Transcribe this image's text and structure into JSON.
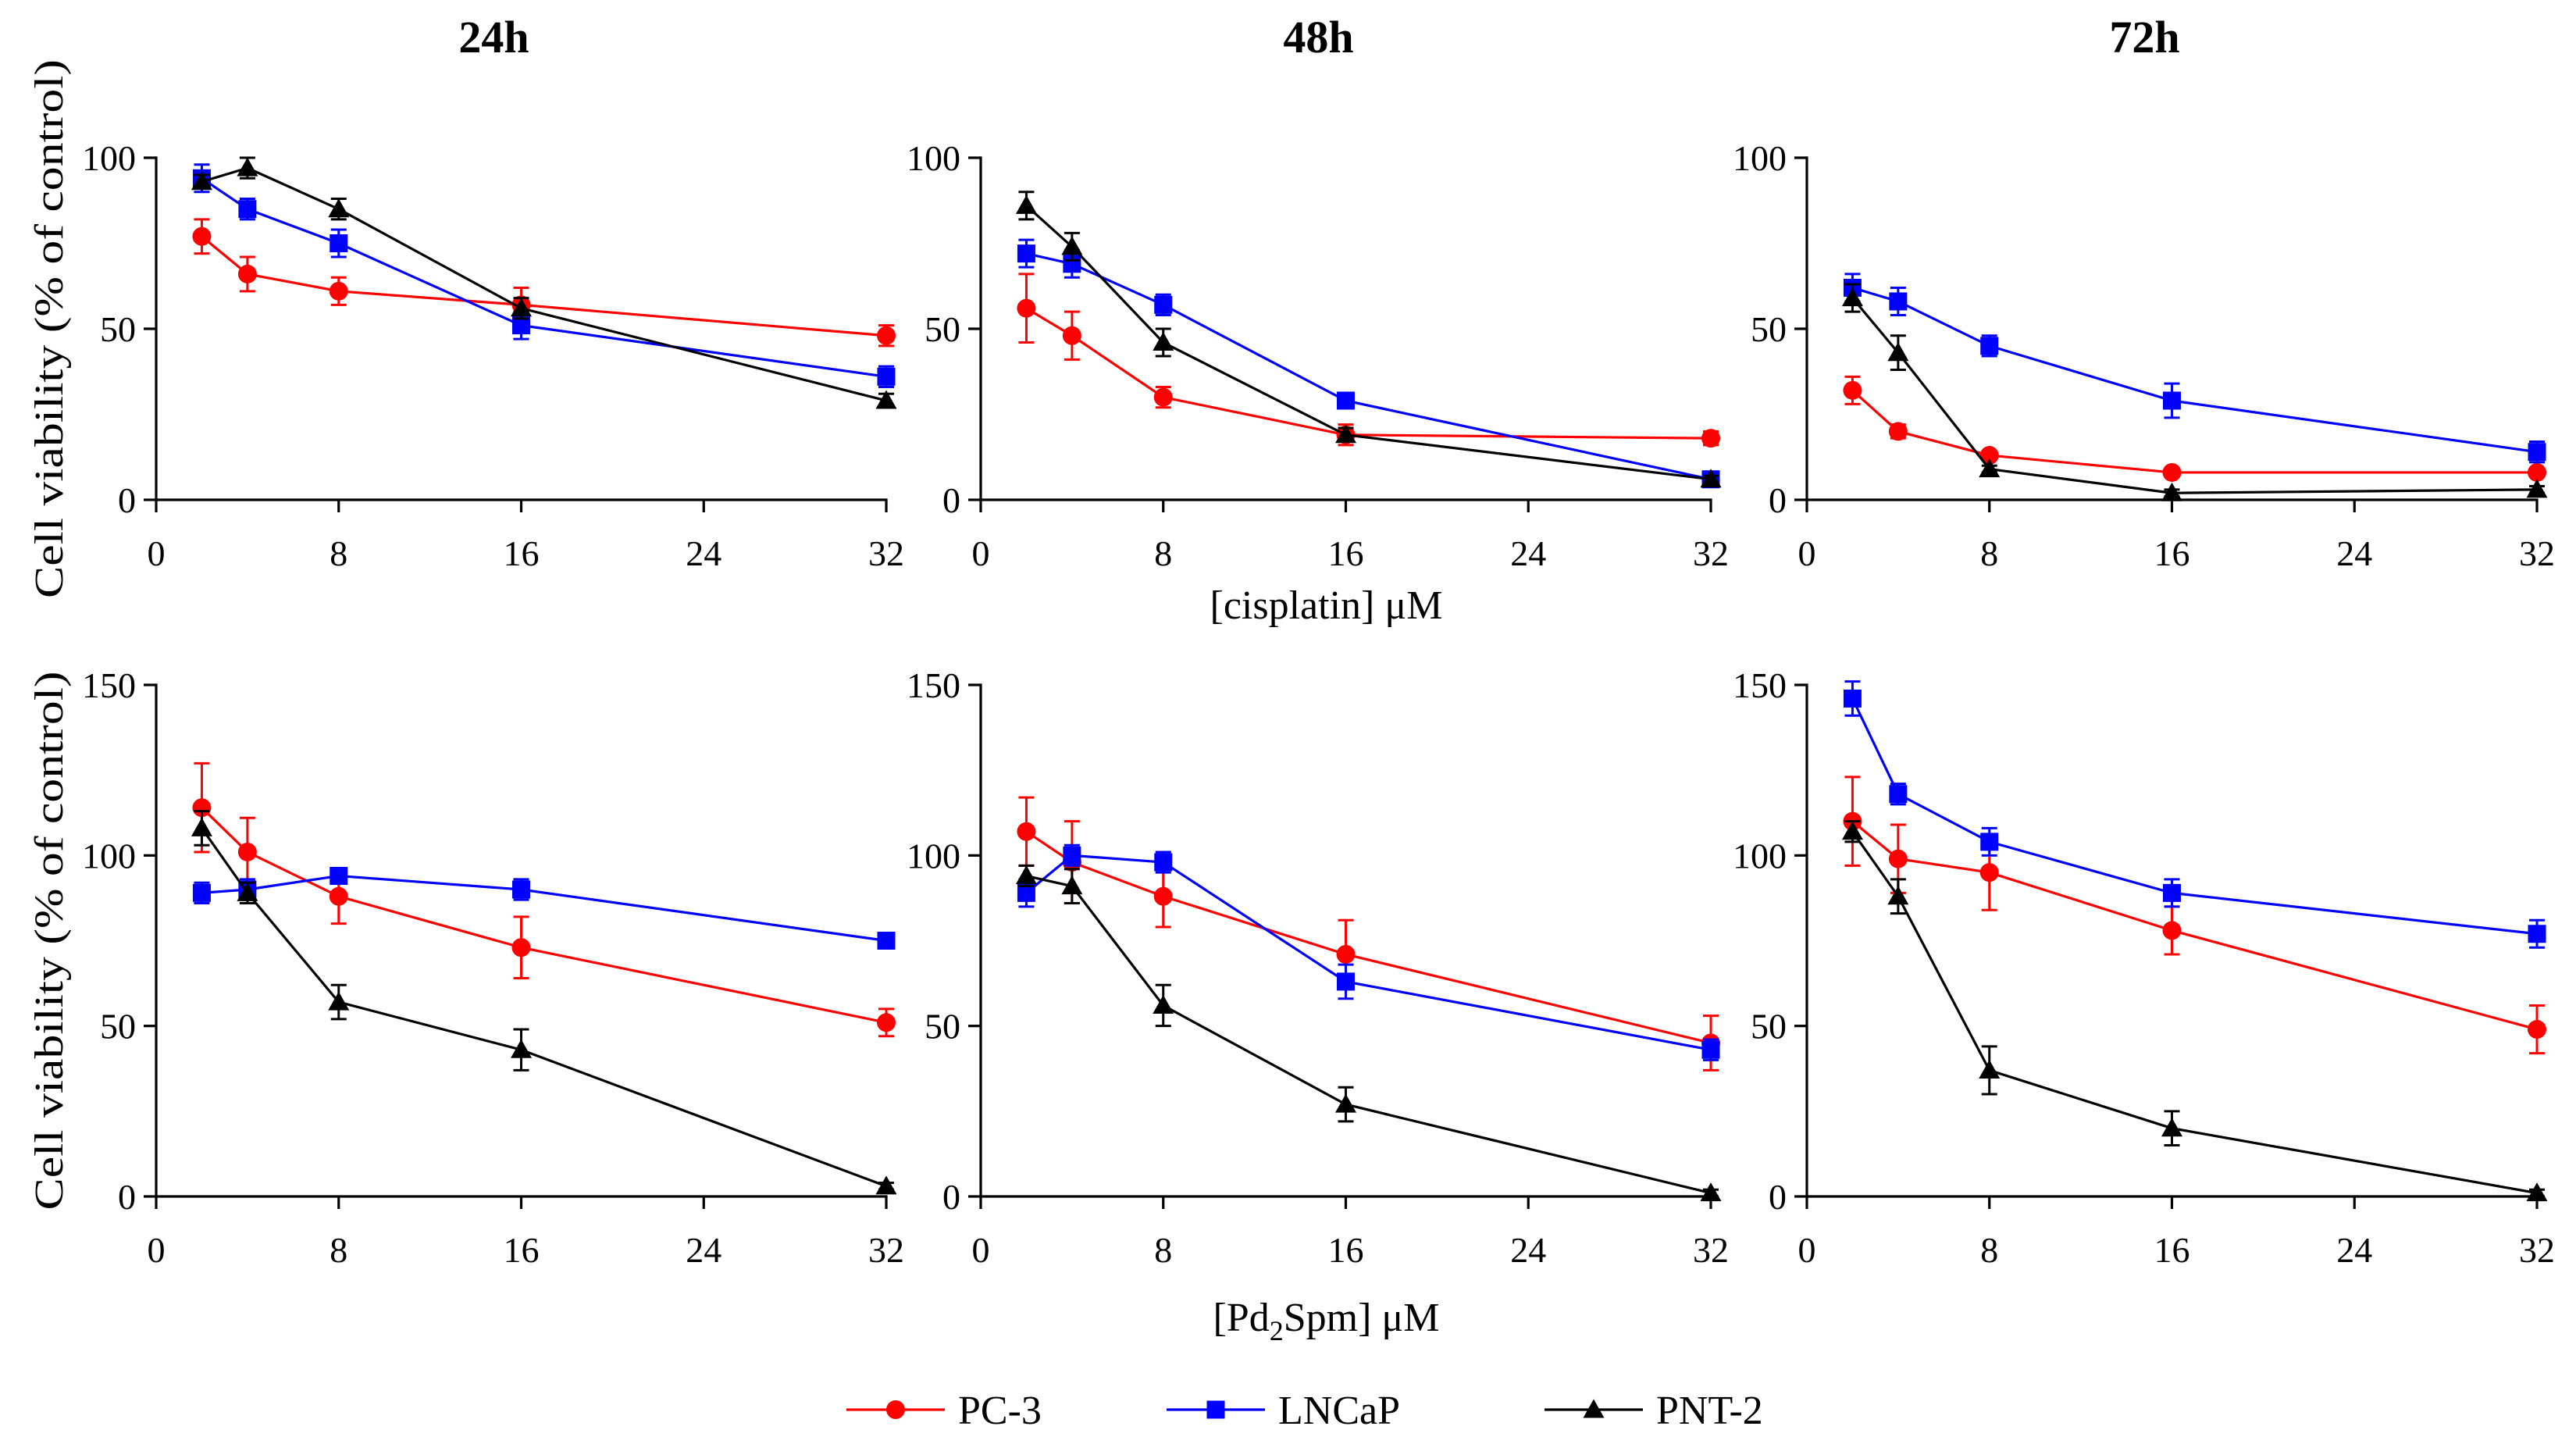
{
  "figure": {
    "legend": [
      {
        "name": "PC-3",
        "color": "#ff0000",
        "marker": "circle"
      },
      {
        "name": "LNCaP",
        "color": "#0000ff",
        "marker": "square"
      },
      {
        "name": "PNT-2",
        "color": "#000000",
        "marker": "triangle"
      }
    ]
  },
  "chart_data": [
    {
      "type": "line",
      "title": "24h",
      "ylabel": "Cell viability (% of control)",
      "xlim": [
        0,
        32
      ],
      "ylim": [
        0,
        100
      ],
      "xticks": [
        0,
        8,
        16,
        24,
        32
      ],
      "yticks": [
        0,
        50,
        100
      ],
      "series": [
        {
          "name": "PC-3",
          "x": [
            2,
            4,
            8,
            16,
            32
          ],
          "values": [
            77,
            66,
            61,
            57,
            48
          ],
          "errors": [
            5,
            5,
            4,
            5,
            3
          ]
        },
        {
          "name": "LNCaP",
          "x": [
            2,
            4,
            8,
            16,
            32
          ],
          "values": [
            94,
            85,
            75,
            51,
            36
          ],
          "errors": [
            4,
            3,
            4,
            4,
            3
          ]
        },
        {
          "name": "PNT-2",
          "x": [
            2,
            4,
            8,
            16,
            32
          ],
          "values": [
            93,
            97,
            85,
            56,
            29
          ],
          "errors": [
            2,
            3,
            3,
            3,
            2
          ]
        }
      ]
    },
    {
      "type": "line",
      "title": "48h",
      "xlabel": [
        {
          "text": "[cisplatin] μM"
        }
      ],
      "xlim": [
        0,
        32
      ],
      "ylim": [
        0,
        100
      ],
      "xticks": [
        0,
        8,
        16,
        24,
        32
      ],
      "yticks": [
        0,
        50,
        100
      ],
      "series": [
        {
          "name": "PC-3",
          "x": [
            2,
            4,
            8,
            16,
            32
          ],
          "values": [
            56,
            48,
            30,
            19,
            18
          ],
          "errors": [
            10,
            7,
            3,
            3,
            2
          ]
        },
        {
          "name": "LNCaP",
          "x": [
            2,
            4,
            8,
            16,
            32
          ],
          "values": [
            72,
            69,
            57,
            29,
            6
          ],
          "errors": [
            4,
            4,
            3,
            2,
            1
          ]
        },
        {
          "name": "PNT-2",
          "x": [
            2,
            4,
            8,
            16,
            32
          ],
          "values": [
            86,
            74,
            46,
            19,
            6
          ],
          "errors": [
            4,
            4,
            4,
            2,
            1
          ]
        }
      ]
    },
    {
      "type": "line",
      "title": "72h",
      "xlim": [
        0,
        32
      ],
      "ylim": [
        0,
        100
      ],
      "xticks": [
        0,
        8,
        16,
        24,
        32
      ],
      "yticks": [
        0,
        50,
        100
      ],
      "series": [
        {
          "name": "PC-3",
          "x": [
            2,
            4,
            8,
            16,
            32
          ],
          "values": [
            32,
            20,
            13,
            8,
            8
          ],
          "errors": [
            4,
            2,
            1,
            1,
            1
          ]
        },
        {
          "name": "LNCaP",
          "x": [
            2,
            4,
            8,
            16,
            32
          ],
          "values": [
            62,
            58,
            45,
            29,
            14
          ],
          "errors": [
            4,
            4,
            3,
            5,
            3
          ]
        },
        {
          "name": "PNT-2",
          "x": [
            2,
            4,
            8,
            16,
            32
          ],
          "values": [
            59,
            43,
            9,
            2,
            3
          ],
          "errors": [
            4,
            5,
            1,
            1,
            1
          ]
        }
      ]
    },
    {
      "type": "line",
      "ylabel": "Cell viability (% of control)",
      "xlim": [
        0,
        32
      ],
      "ylim": [
        0,
        150
      ],
      "xticks": [
        0,
        8,
        16,
        24,
        32
      ],
      "yticks": [
        0,
        50,
        100,
        150
      ],
      "series": [
        {
          "name": "PC-3",
          "x": [
            2,
            4,
            8,
            16,
            32
          ],
          "values": [
            114,
            101,
            88,
            73,
            51
          ],
          "errors": [
            13,
            10,
            8,
            9,
            4
          ]
        },
        {
          "name": "LNCaP",
          "x": [
            2,
            4,
            8,
            16,
            32
          ],
          "values": [
            89,
            90,
            94,
            90,
            75
          ],
          "errors": [
            3,
            3,
            2,
            3,
            1
          ]
        },
        {
          "name": "PNT-2",
          "x": [
            2,
            4,
            8,
            16,
            32
          ],
          "values": [
            108,
            89,
            57,
            43,
            3
          ],
          "errors": [
            5,
            3,
            5,
            6,
            1
          ]
        }
      ]
    },
    {
      "type": "line",
      "xlabel": [
        {
          "text": "[Pd"
        },
        {
          "text": "2",
          "sub": true
        },
        {
          "text": "Spm] μM"
        }
      ],
      "xlim": [
        0,
        32
      ],
      "ylim": [
        0,
        150
      ],
      "xticks": [
        0,
        8,
        16,
        24,
        32
      ],
      "yticks": [
        0,
        50,
        100,
        150
      ],
      "series": [
        {
          "name": "PC-3",
          "x": [
            2,
            4,
            8,
            16,
            32
          ],
          "values": [
            107,
            98,
            88,
            71,
            45
          ],
          "errors": [
            10,
            12,
            9,
            10,
            8
          ]
        },
        {
          "name": "LNCaP",
          "x": [
            2,
            4,
            8,
            16,
            32
          ],
          "values": [
            89,
            100,
            98,
            63,
            43
          ],
          "errors": [
            4,
            3,
            3,
            5,
            3
          ]
        },
        {
          "name": "PNT-2",
          "x": [
            2,
            4,
            8,
            16,
            32
          ],
          "values": [
            94,
            91,
            56,
            27,
            1
          ],
          "errors": [
            3,
            5,
            6,
            5,
            1
          ]
        }
      ]
    },
    {
      "type": "line",
      "xlim": [
        0,
        32
      ],
      "ylim": [
        0,
        150
      ],
      "xticks": [
        0,
        8,
        16,
        24,
        32
      ],
      "yticks": [
        0,
        50,
        100,
        150
      ],
      "series": [
        {
          "name": "PC-3",
          "x": [
            2,
            4,
            8,
            16,
            32
          ],
          "values": [
            110,
            99,
            95,
            78,
            49
          ],
          "errors": [
            13,
            10,
            11,
            7,
            7
          ]
        },
        {
          "name": "LNCaP",
          "x": [
            2,
            4,
            8,
            16,
            32
          ],
          "values": [
            146,
            118,
            104,
            89,
            77
          ],
          "errors": [
            5,
            3,
            4,
            4,
            4
          ]
        },
        {
          "name": "PNT-2",
          "x": [
            2,
            4,
            8,
            16,
            32
          ],
          "values": [
            107,
            88,
            37,
            20,
            1
          ],
          "errors": [
            3,
            5,
            7,
            5,
            1
          ]
        }
      ]
    }
  ]
}
